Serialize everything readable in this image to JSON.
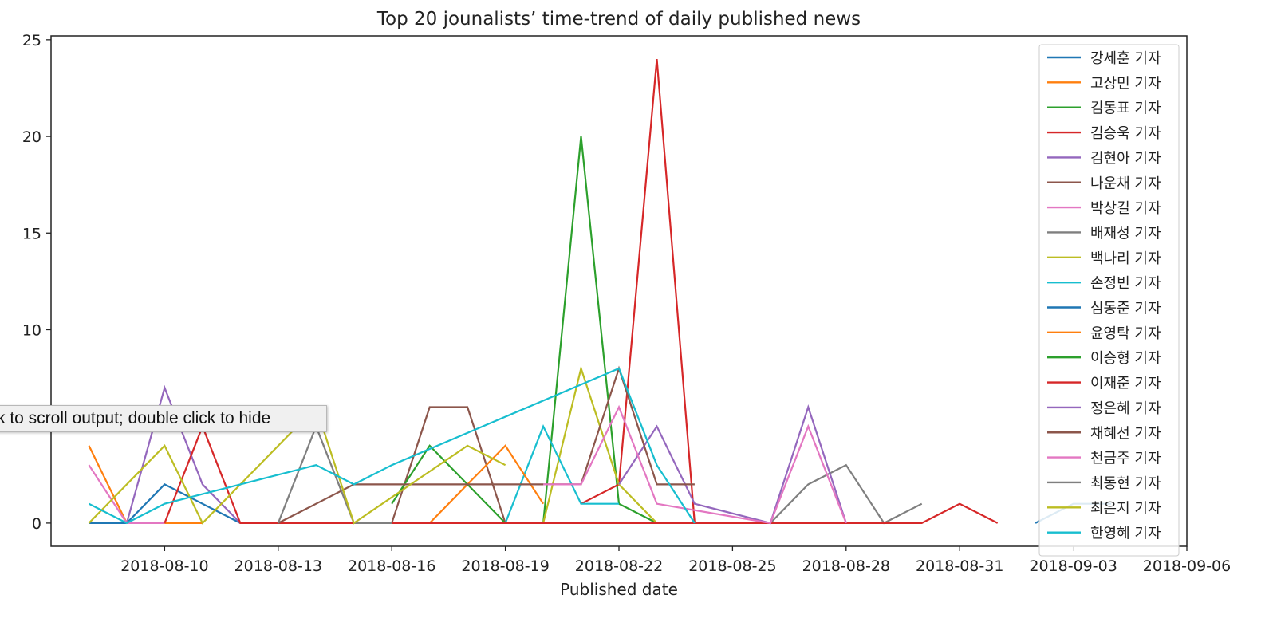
{
  "tooltip": {
    "text": "Click to scroll output; double click to hide"
  },
  "chart_data": {
    "type": "line",
    "title": "Top 20 jounalists’ time-trend of daily published news",
    "xlabel": "Published date",
    "ylabel": "",
    "xlim": [
      "2018-08-07",
      "2018-09-06"
    ],
    "ylim": [
      -1.2,
      25.2
    ],
    "y_ticks": [
      0,
      5,
      10,
      15,
      20,
      25
    ],
    "x_ticks": [
      "2018-08-10",
      "2018-08-13",
      "2018-08-16",
      "2018-08-19",
      "2018-08-22",
      "2018-08-25",
      "2018-08-28",
      "2018-08-31",
      "2018-09-03",
      "2018-09-06"
    ],
    "grid": false,
    "legend": "top-right",
    "series": [
      {
        "name": "강세훈 기자",
        "color": "#1f77b4",
        "x": [
          "2018-08-08",
          "2018-08-09",
          "2018-08-10",
          "2018-08-11",
          "2018-08-12"
        ],
        "values": [
          0,
          0,
          2,
          1,
          0
        ]
      },
      {
        "name": "고상민 기자",
        "color": "#ff7f0e",
        "x": [
          "2018-08-08",
          "2018-08-09",
          "2018-08-10",
          "2018-08-11"
        ],
        "values": [
          4,
          0,
          0,
          0
        ]
      },
      {
        "name": "김동표 기자",
        "color": "#2ca02c",
        "x": [
          "2018-08-20",
          "2018-08-21",
          "2018-08-22",
          "2018-08-23",
          "2018-08-24"
        ],
        "values": [
          0,
          20,
          1,
          0,
          0
        ]
      },
      {
        "name": "김승욱 기자",
        "color": "#d62728",
        "x": [
          "2018-08-21",
          "2018-08-22",
          "2018-08-23",
          "2018-08-24",
          "2018-08-25"
        ],
        "values": [
          1,
          2,
          24,
          0,
          0
        ]
      },
      {
        "name": "김현아 기자",
        "color": "#9467bd",
        "x": [
          "2018-08-09",
          "2018-08-10",
          "2018-08-11",
          "2018-08-12"
        ],
        "values": [
          0,
          7,
          2,
          0
        ]
      },
      {
        "name": "나운채 기자",
        "color": "#8c564b",
        "x": [
          "2018-08-16",
          "2018-08-17",
          "2018-08-18",
          "2018-08-19",
          "2018-08-20"
        ],
        "values": [
          0,
          6,
          6,
          0,
          0
        ]
      },
      {
        "name": "박상길 기자",
        "color": "#e377c2",
        "x": [
          "2018-08-08",
          "2018-08-09",
          "2018-08-10"
        ],
        "values": [
          3,
          0,
          0
        ]
      },
      {
        "name": "배재성 기자",
        "color": "#7f7f7f",
        "x": [
          "2018-08-26",
          "2018-08-27",
          "2018-08-28",
          "2018-08-29",
          "2018-08-30"
        ],
        "values": [
          0,
          2,
          3,
          0,
          1
        ]
      },
      {
        "name": "백나리 기자",
        "color": "#bcbd22",
        "x": [
          "2018-08-20",
          "2018-08-21",
          "2018-08-22",
          "2018-08-23"
        ],
        "values": [
          0,
          8,
          2,
          0
        ]
      },
      {
        "name": "손정빈 기자",
        "color": "#17becf",
        "x": [
          "2018-08-19",
          "2018-08-20",
          "2018-08-21",
          "2018-08-22"
        ],
        "values": [
          0,
          5,
          1,
          1
        ]
      },
      {
        "name": "심동준 기자",
        "color": "#1f77b4",
        "x": [
          "2018-09-02",
          "2018-09-03",
          "2018-09-04"
        ],
        "values": [
          0,
          1,
          1
        ]
      },
      {
        "name": "윤영탁 기자",
        "color": "#ff7f0e",
        "x": [
          "2018-08-17",
          "2018-08-18",
          "2018-08-19",
          "2018-08-20"
        ],
        "values": [
          0,
          2,
          4,
          1
        ]
      },
      {
        "name": "이승형 기자",
        "color": "#2ca02c",
        "x": [
          "2018-08-16",
          "2018-08-17",
          "2018-08-18",
          "2018-08-19"
        ],
        "values": [
          1,
          4,
          2,
          0
        ]
      },
      {
        "name": "이재준 기자",
        "color": "#d62728",
        "x": [
          "2018-08-10",
          "2018-08-11",
          "2018-08-12",
          "2018-08-30",
          "2018-08-31",
          "2018-09-01"
        ],
        "values": [
          0,
          5,
          0,
          0,
          1,
          0
        ]
      },
      {
        "name": "정은혜 기자",
        "color": "#9467bd",
        "x": [
          "2018-08-22",
          "2018-08-23",
          "2018-08-24",
          "2018-08-26",
          "2018-08-27",
          "2018-08-28"
        ],
        "values": [
          2,
          5,
          1,
          0,
          6,
          0
        ]
      },
      {
        "name": "채혜선 기자",
        "color": "#8c564b",
        "x": [
          "2018-08-13",
          "2018-08-14",
          "2018-08-15",
          "2018-08-21",
          "2018-08-22",
          "2018-08-23",
          "2018-08-24"
        ],
        "values": [
          0,
          1,
          2,
          2,
          8,
          2,
          2
        ]
      },
      {
        "name": "천금주 기자",
        "color": "#e377c2",
        "x": [
          "2018-08-20",
          "2018-08-21",
          "2018-08-22",
          "2018-08-23",
          "2018-08-26",
          "2018-08-27",
          "2018-08-28"
        ],
        "values": [
          2,
          2,
          6,
          1,
          0,
          5,
          0
        ]
      },
      {
        "name": "최동현 기자",
        "color": "#7f7f7f",
        "x": [
          "2018-08-13",
          "2018-08-14",
          "2018-08-15",
          "2018-08-16"
        ],
        "values": [
          0,
          5,
          0,
          0
        ]
      },
      {
        "name": "최은지 기자",
        "color": "#bcbd22",
        "x": [
          "2018-08-08",
          "2018-08-10",
          "2018-08-11",
          "2018-08-14",
          "2018-08-15",
          "2018-08-18",
          "2018-08-19"
        ],
        "values": [
          0,
          4,
          0,
          6,
          0,
          4,
          3
        ]
      },
      {
        "name": "한영혜 기자",
        "color": "#17becf",
        "x": [
          "2018-08-08",
          "2018-08-09",
          "2018-08-10",
          "2018-08-14",
          "2018-08-15",
          "2018-08-16",
          "2018-08-22",
          "2018-08-23",
          "2018-08-24"
        ],
        "values": [
          1,
          0,
          1,
          3,
          2,
          3,
          8,
          3,
          0
        ]
      }
    ]
  }
}
